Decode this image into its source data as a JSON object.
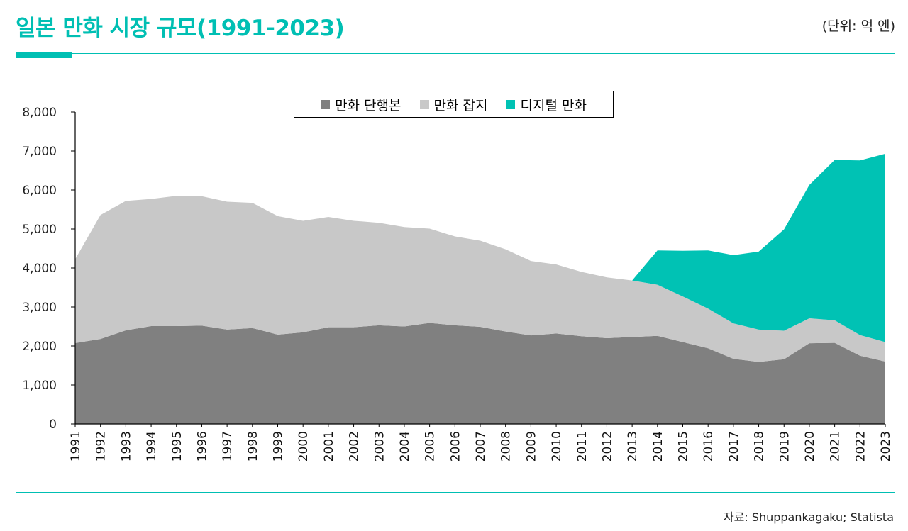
{
  "header": {
    "title": "일본 만화 시장 규모(1991-2023)",
    "unit": "(단위: 억 엔)"
  },
  "footer": {
    "source": "자료: Shuppankagaku; Statista"
  },
  "colors": {
    "accent": "#00bfb3",
    "print_volumes": "#808080",
    "print_magazines": "#c8c8c8",
    "digital": "#00c2b4"
  },
  "chart_data": {
    "type": "area",
    "stacked": true,
    "title": "일본 만화 시장 규모(1991-2023)",
    "ylabel": "",
    "xlabel": "",
    "ylim": [
      0,
      8000
    ],
    "yticks": [
      "0",
      "1,000",
      "2,000",
      "3,000",
      "4,000",
      "5,000",
      "6,000",
      "7,000",
      "8,000"
    ],
    "legend_position": "top-center",
    "grid": false,
    "x": [
      1991,
      1992,
      1993,
      1994,
      1995,
      1996,
      1997,
      1998,
      1999,
      2000,
      2001,
      2002,
      2003,
      2004,
      2005,
      2006,
      2007,
      2008,
      2009,
      2010,
      2011,
      2012,
      2013,
      2014,
      2015,
      2016,
      2017,
      2018,
      2019,
      2020,
      2021,
      2022,
      2023
    ],
    "series": [
      {
        "name": "만화 단행본",
        "color": "#808080",
        "values": [
          2075,
          2180,
          2400,
          2510,
          2510,
          2520,
          2420,
          2460,
          2290,
          2350,
          2480,
          2480,
          2530,
          2500,
          2590,
          2530,
          2490,
          2370,
          2270,
          2320,
          2250,
          2200,
          2230,
          2260,
          2100,
          1940,
          1670,
          1590,
          1660,
          2070,
          2080,
          1750,
          1600
        ]
      },
      {
        "name": "만화 잡지",
        "color": "#c8c8c8",
        "values": [
          2150,
          3180,
          3320,
          3260,
          3340,
          3320,
          3280,
          3210,
          3040,
          2860,
          2830,
          2730,
          2630,
          2550,
          2420,
          2280,
          2210,
          2110,
          1910,
          1770,
          1650,
          1560,
          1450,
          1310,
          1170,
          1020,
          910,
          830,
          730,
          640,
          580,
          530,
          500
        ]
      },
      {
        "name": "디지털 만화",
        "color": "#00c2b4",
        "values": [
          0,
          0,
          0,
          0,
          0,
          0,
          0,
          0,
          0,
          0,
          0,
          0,
          0,
          0,
          0,
          0,
          0,
          0,
          0,
          0,
          0,
          0,
          0,
          880,
          1170,
          1490,
          1750,
          2000,
          2600,
          3420,
          4110,
          4480,
          4830
        ]
      }
    ]
  }
}
